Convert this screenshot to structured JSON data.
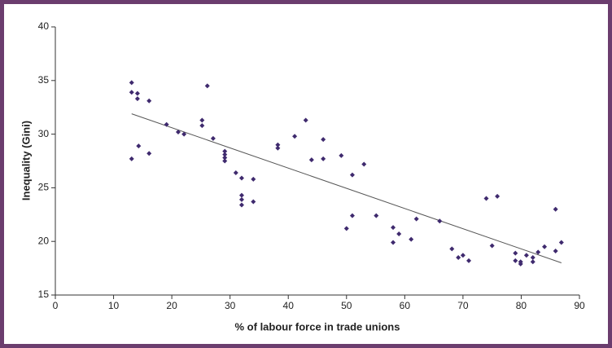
{
  "chart_data": {
    "type": "scatter",
    "x_label": "% of labour force in trade unions",
    "y_label": "Inequality (Gini)",
    "x": [
      13.1,
      13.1,
      14.1,
      14.1,
      16.1,
      13.1,
      14.3,
      16.1,
      19.1,
      21.1,
      22.1,
      25.2,
      25.2,
      26.1,
      27.1,
      29.1,
      29.1,
      29.1,
      29.1,
      31.0,
      32.0,
      32.0,
      32.0,
      32.0,
      34.0,
      34.0,
      38.2,
      38.2,
      41.1,
      43.0,
      44.0,
      46.0,
      46.0,
      49.1,
      50.0,
      51.0,
      51.0,
      53.0,
      55.1,
      58.0,
      58.0,
      59.0,
      61.1,
      62.0,
      66.0,
      68.1,
      69.2,
      70.0,
      71.0,
      74.0,
      75.0,
      75.9,
      79.0,
      79.0,
      79.9,
      79.9,
      80.9,
      82.0,
      82.0,
      82.9,
      84.0,
      85.9,
      85.9,
      86.9
    ],
    "values": [
      34.8,
      33.9,
      33.8,
      33.3,
      33.1,
      27.7,
      28.9,
      28.2,
      30.9,
      30.2,
      30.0,
      31.3,
      30.8,
      34.5,
      29.6,
      28.4,
      28.1,
      27.8,
      27.5,
      26.4,
      25.9,
      24.3,
      23.9,
      23.4,
      25.8,
      23.7,
      29.0,
      28.7,
      29.8,
      31.3,
      27.6,
      29.5,
      27.7,
      28.0,
      21.2,
      26.2,
      22.4,
      27.2,
      22.4,
      21.3,
      19.9,
      20.7,
      20.2,
      22.1,
      21.9,
      19.3,
      18.5,
      18.7,
      18.2,
      24.0,
      19.6,
      24.2,
      18.9,
      18.2,
      18.1,
      17.9,
      18.7,
      18.5,
      18.1,
      19.0,
      19.5,
      23.0,
      19.1,
      19.9
    ],
    "color": "#3f2a6e",
    "trend_line": {
      "x": [
        13.1,
        86.9
      ],
      "y": [
        31.9,
        18.0
      ],
      "color": "#555555"
    },
    "xlim": [
      0,
      90
    ],
    "xticks": [
      0,
      10,
      20,
      30,
      40,
      50,
      60,
      70,
      80,
      90
    ],
    "ylim": [
      15,
      40
    ],
    "yticks": [
      15,
      20,
      25,
      30,
      35,
      40
    ],
    "grid": false
  }
}
